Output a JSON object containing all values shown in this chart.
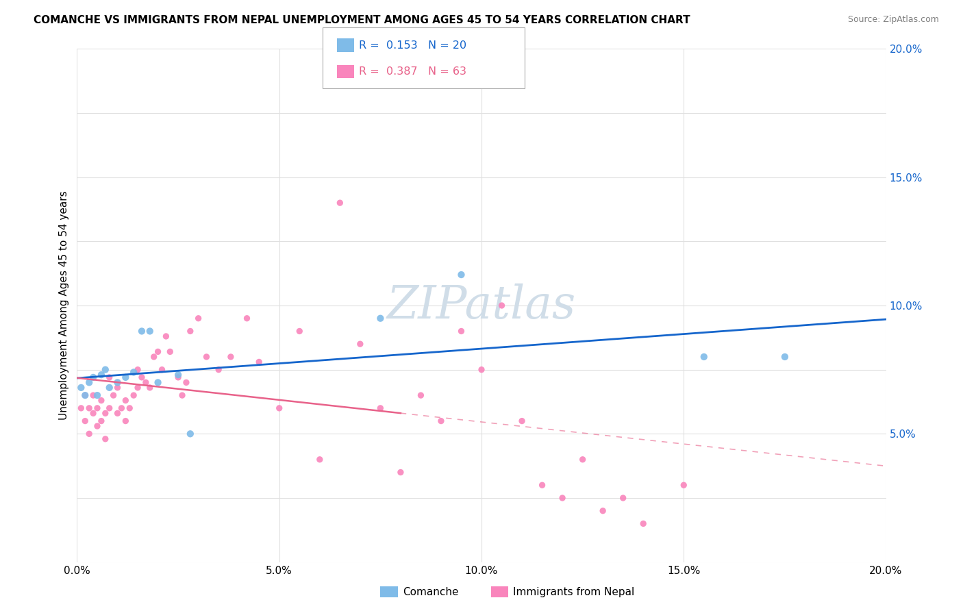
{
  "title": "COMANCHE VS IMMIGRANTS FROM NEPAL UNEMPLOYMENT AMONG AGES 45 TO 54 YEARS CORRELATION CHART",
  "source": "Source: ZipAtlas.com",
  "ylabel": "Unemployment Among Ages 45 to 54 years",
  "xlim": [
    0.0,
    0.2
  ],
  "ylim": [
    0.0,
    0.2
  ],
  "xtick_labels": [
    "0.0%",
    "5.0%",
    "10.0%",
    "15.0%",
    "20.0%"
  ],
  "xtick_vals": [
    0.0,
    0.05,
    0.1,
    0.15,
    0.2
  ],
  "ytick_labels": [
    "5.0%",
    "10.0%",
    "15.0%",
    "20.0%"
  ],
  "ytick_vals": [
    0.05,
    0.1,
    0.15,
    0.2
  ],
  "comanche_R": "0.153",
  "comanche_N": "20",
  "nepal_R": "0.387",
  "nepal_N": "63",
  "comanche_color": "#7fbbe8",
  "nepal_color": "#f985bc",
  "comanche_line_color": "#1666cc",
  "nepal_line_color": "#e8628a",
  "watermark_color": "#d0dde8",
  "background_color": "#ffffff",
  "grid_color": "#e0e0e0",
  "comanche_x": [
    0.001,
    0.002,
    0.003,
    0.004,
    0.005,
    0.006,
    0.007,
    0.008,
    0.01,
    0.012,
    0.014,
    0.016,
    0.018,
    0.02,
    0.025,
    0.028,
    0.075,
    0.095,
    0.155,
    0.175
  ],
  "comanche_y": [
    0.068,
    0.065,
    0.07,
    0.072,
    0.065,
    0.073,
    0.075,
    0.068,
    0.07,
    0.072,
    0.074,
    0.09,
    0.09,
    0.07,
    0.073,
    0.05,
    0.095,
    0.112,
    0.08,
    0.08
  ],
  "nepal_x": [
    0.001,
    0.002,
    0.002,
    0.003,
    0.003,
    0.004,
    0.004,
    0.005,
    0.005,
    0.006,
    0.006,
    0.007,
    0.007,
    0.008,
    0.008,
    0.009,
    0.01,
    0.01,
    0.011,
    0.012,
    0.012,
    0.013,
    0.014,
    0.015,
    0.015,
    0.016,
    0.017,
    0.018,
    0.019,
    0.02,
    0.021,
    0.022,
    0.023,
    0.025,
    0.026,
    0.027,
    0.028,
    0.03,
    0.032,
    0.035,
    0.038,
    0.042,
    0.045,
    0.05,
    0.055,
    0.06,
    0.065,
    0.07,
    0.075,
    0.08,
    0.085,
    0.09,
    0.095,
    0.1,
    0.105,
    0.11,
    0.115,
    0.12,
    0.125,
    0.13,
    0.135,
    0.14,
    0.15
  ],
  "nepal_y": [
    0.06,
    0.065,
    0.055,
    0.06,
    0.05,
    0.058,
    0.065,
    0.06,
    0.053,
    0.055,
    0.063,
    0.058,
    0.048,
    0.06,
    0.072,
    0.065,
    0.058,
    0.068,
    0.06,
    0.063,
    0.055,
    0.06,
    0.065,
    0.068,
    0.075,
    0.072,
    0.07,
    0.068,
    0.08,
    0.082,
    0.075,
    0.088,
    0.082,
    0.072,
    0.065,
    0.07,
    0.09,
    0.095,
    0.08,
    0.075,
    0.08,
    0.095,
    0.078,
    0.06,
    0.09,
    0.04,
    0.14,
    0.085,
    0.06,
    0.035,
    0.065,
    0.055,
    0.09,
    0.075,
    0.1,
    0.055,
    0.03,
    0.025,
    0.04,
    0.02,
    0.025,
    0.015,
    0.03
  ],
  "nepal_solid_xlim": [
    0.0,
    0.08
  ],
  "legend_box_label1": "R =  0.153   N = 20",
  "legend_box_label2": "R =  0.387   N = 63",
  "bottom_legend": [
    "Comanche",
    "Immigrants from Nepal"
  ]
}
